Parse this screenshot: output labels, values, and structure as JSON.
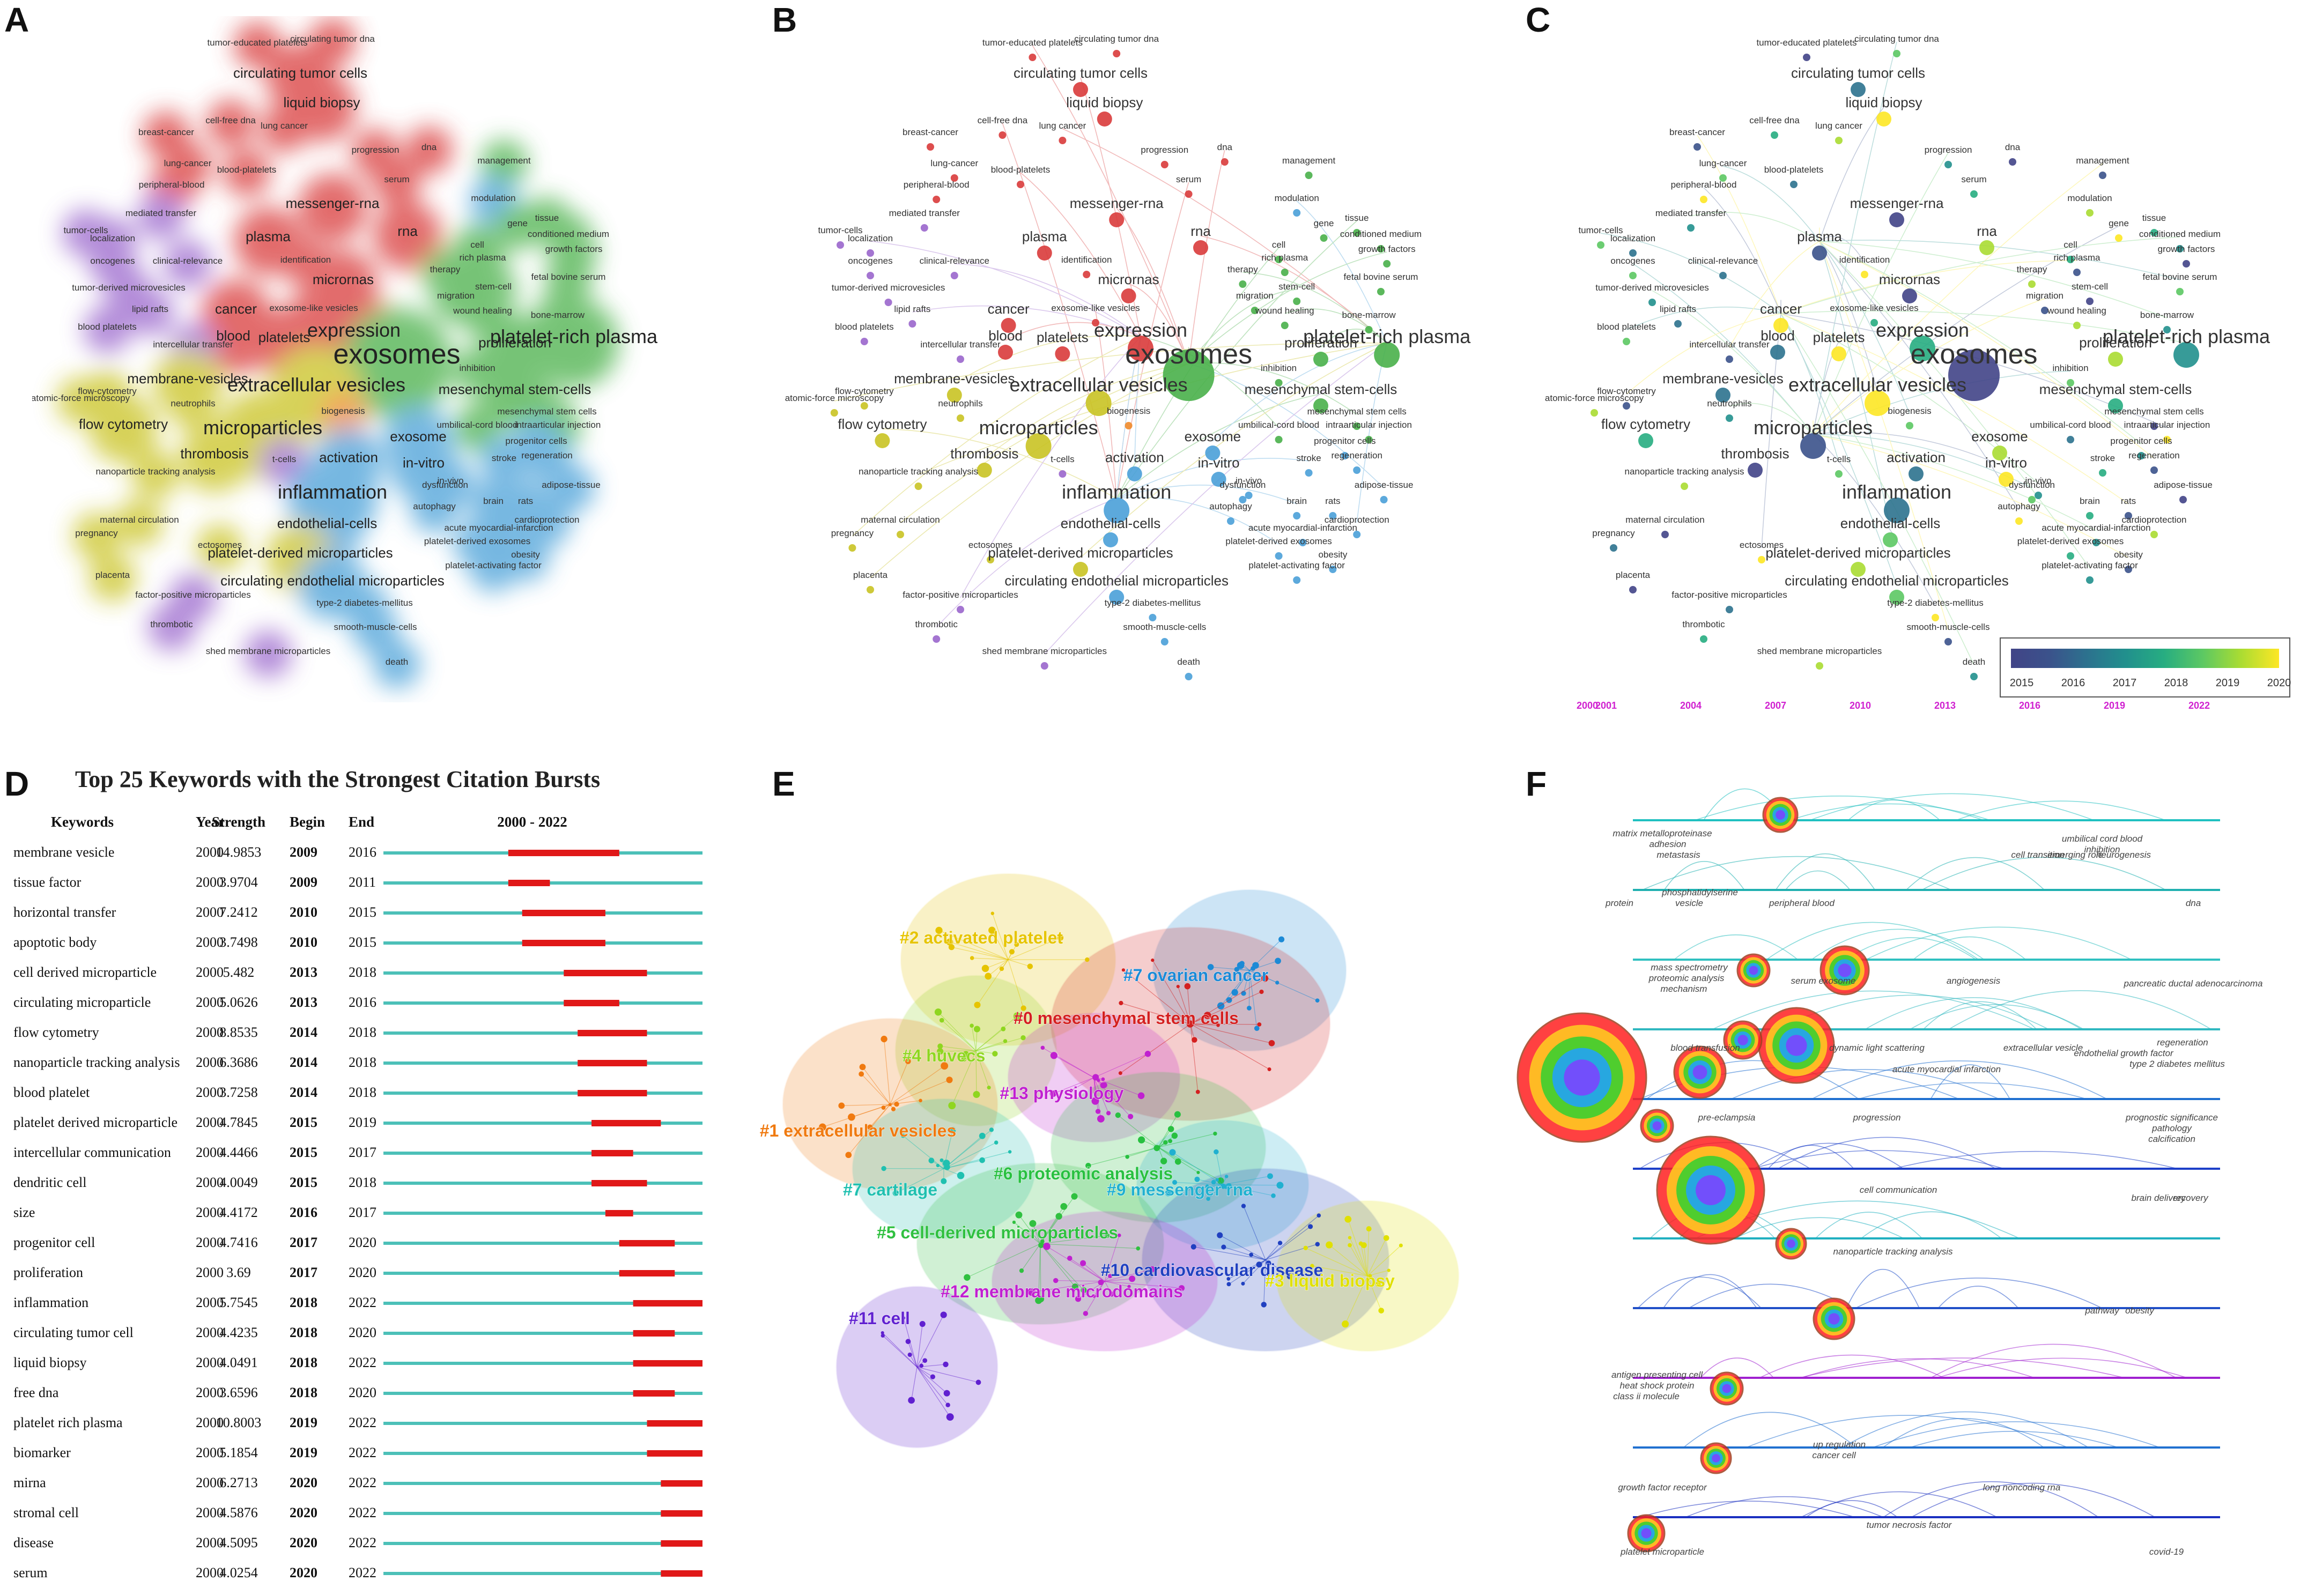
{
  "panel_labels": [
    "A",
    "B",
    "C",
    "D",
    "E",
    "F"
  ],
  "network_terms": [
    {
      "t": "tumor-educated platelets",
      "s": 1,
      "c": "red"
    },
    {
      "t": "circulating tumor dna",
      "s": 1,
      "c": "red"
    },
    {
      "t": "circulating tumor cells",
      "s": 2,
      "c": "red"
    },
    {
      "t": "liquid biopsy",
      "s": 2,
      "c": "red"
    },
    {
      "t": "cell-free dna",
      "s": 1,
      "c": "red"
    },
    {
      "t": "breast-cancer",
      "s": 1,
      "c": "red"
    },
    {
      "t": "lung cancer",
      "s": 1,
      "c": "red"
    },
    {
      "t": "progression",
      "s": 1,
      "c": "red"
    },
    {
      "t": "dna",
      "s": 1,
      "c": "red"
    },
    {
      "t": "lung-cancer",
      "s": 1,
      "c": "red"
    },
    {
      "t": "blood-platelets",
      "s": 1,
      "c": "red"
    },
    {
      "t": "peripheral-blood",
      "s": 1,
      "c": "red"
    },
    {
      "t": "serum",
      "s": 1,
      "c": "red"
    },
    {
      "t": "management",
      "s": 1,
      "c": "green"
    },
    {
      "t": "modulation",
      "s": 1,
      "c": "blue"
    },
    {
      "t": "mediated transfer",
      "s": 1,
      "c": "purple"
    },
    {
      "t": "messenger-rna",
      "s": 2,
      "c": "red"
    },
    {
      "t": "tumor-cells",
      "s": 1,
      "c": "purple"
    },
    {
      "t": "localization",
      "s": 1,
      "c": "purple"
    },
    {
      "t": "gene",
      "s": 1,
      "c": "green"
    },
    {
      "t": "tissue",
      "s": 1,
      "c": "green"
    },
    {
      "t": "plasma",
      "s": 2,
      "c": "red"
    },
    {
      "t": "rna",
      "s": 2,
      "c": "red"
    },
    {
      "t": "conditioned medium",
      "s": 1,
      "c": "green"
    },
    {
      "t": "growth factors",
      "s": 1,
      "c": "green"
    },
    {
      "t": "oncogenes",
      "s": 1,
      "c": "purple"
    },
    {
      "t": "clinical-relevance",
      "s": 1,
      "c": "purple"
    },
    {
      "t": "identification",
      "s": 1,
      "c": "red"
    },
    {
      "t": "cell",
      "s": 1,
      "c": "green"
    },
    {
      "t": "rich plasma",
      "s": 1,
      "c": "green"
    },
    {
      "t": "therapy",
      "s": 1,
      "c": "green"
    },
    {
      "t": "tumor-derived microvesicles",
      "s": 1,
      "c": "purple"
    },
    {
      "t": "micrornas",
      "s": 2,
      "c": "red"
    },
    {
      "t": "fetal bovine serum",
      "s": 1,
      "c": "green"
    },
    {
      "t": "lipid rafts",
      "s": 1,
      "c": "purple"
    },
    {
      "t": "cancer",
      "s": 2,
      "c": "red"
    },
    {
      "t": "exosome-like vesicles",
      "s": 1,
      "c": "red"
    },
    {
      "t": "migration",
      "s": 1,
      "c": "green"
    },
    {
      "t": "wound healing",
      "s": 1,
      "c": "green"
    },
    {
      "t": "bone-marrow",
      "s": 1,
      "c": "green"
    },
    {
      "t": "stem-cell",
      "s": 1,
      "c": "green"
    },
    {
      "t": "blood platelets",
      "s": 1,
      "c": "purple"
    },
    {
      "t": "blood",
      "s": 2,
      "c": "red"
    },
    {
      "t": "platelets",
      "s": 2,
      "c": "red"
    },
    {
      "t": "expression",
      "s": 3,
      "c": "red"
    },
    {
      "t": "intercellular transfer",
      "s": 1,
      "c": "purple"
    },
    {
      "t": "proliferation",
      "s": 2,
      "c": "green"
    },
    {
      "t": "platelet-rich plasma",
      "s": 3,
      "c": "green"
    },
    {
      "t": "exosomes",
      "s": 4,
      "c": "green"
    },
    {
      "t": "inhibition",
      "s": 1,
      "c": "green"
    },
    {
      "t": "membrane-vesicles",
      "s": 2,
      "c": "yellow"
    },
    {
      "t": "extracellular vesicles",
      "s": 3,
      "c": "yellow"
    },
    {
      "t": "mesenchymal stem-cells",
      "s": 2,
      "c": "green"
    },
    {
      "t": "flow-cytometry",
      "s": 1,
      "c": "yellow"
    },
    {
      "t": "atomic-force microscopy",
      "s": 1,
      "c": "yellow"
    },
    {
      "t": "neutrophils",
      "s": 1,
      "c": "yellow"
    },
    {
      "t": "mesenchymal stem cells",
      "s": 1,
      "c": "green"
    },
    {
      "t": "biogenesis",
      "s": 1,
      "c": "orange"
    },
    {
      "t": "umbilical-cord blood",
      "s": 1,
      "c": "green"
    },
    {
      "t": "intraarticular injection",
      "s": 1,
      "c": "green"
    },
    {
      "t": "flow cytometry",
      "s": 2,
      "c": "yellow"
    },
    {
      "t": "microparticles",
      "s": 3,
      "c": "yellow"
    },
    {
      "t": "exosome",
      "s": 2,
      "c": "blue"
    },
    {
      "t": "progenitor cells",
      "s": 1,
      "c": "blue"
    },
    {
      "t": "thrombosis",
      "s": 2,
      "c": "yellow"
    },
    {
      "t": "t-cells",
      "s": 1,
      "c": "purple"
    },
    {
      "t": "activation",
      "s": 2,
      "c": "blue"
    },
    {
      "t": "in-vitro",
      "s": 2,
      "c": "blue"
    },
    {
      "t": "stroke",
      "s": 1,
      "c": "blue"
    },
    {
      "t": "regeneration",
      "s": 1,
      "c": "blue"
    },
    {
      "t": "nanoparticle tracking analysis",
      "s": 1,
      "c": "yellow"
    },
    {
      "t": "in-vivo",
      "s": 1,
      "c": "blue"
    },
    {
      "t": "adipose-tissue",
      "s": 1,
      "c": "blue"
    },
    {
      "t": "dysfunction",
      "s": 1,
      "c": "blue"
    },
    {
      "t": "inflammation",
      "s": 3,
      "c": "blue"
    },
    {
      "t": "autophagy",
      "s": 1,
      "c": "blue"
    },
    {
      "t": "brain",
      "s": 1,
      "c": "blue"
    },
    {
      "t": "rats",
      "s": 1,
      "c": "blue"
    },
    {
      "t": "cardioprotection",
      "s": 1,
      "c": "blue"
    },
    {
      "t": "acute myocardial-infarction",
      "s": 1,
      "c": "blue"
    },
    {
      "t": "maternal circulation",
      "s": 1,
      "c": "yellow"
    },
    {
      "t": "endothelial-cells",
      "s": 2,
      "c": "blue"
    },
    {
      "t": "pregnancy",
      "s": 1,
      "c": "yellow"
    },
    {
      "t": "ectosomes",
      "s": 1,
      "c": "yellow"
    },
    {
      "t": "platelet-derived exosomes",
      "s": 1,
      "c": "blue"
    },
    {
      "t": "obesity",
      "s": 1,
      "c": "blue"
    },
    {
      "t": "platelet-derived microparticles",
      "s": 2,
      "c": "yellow"
    },
    {
      "t": "platelet-activating factor",
      "s": 1,
      "c": "blue"
    },
    {
      "t": "placenta",
      "s": 1,
      "c": "yellow"
    },
    {
      "t": "circulating endothelial microparticles",
      "s": 2,
      "c": "blue"
    },
    {
      "t": "factor-positive microparticles",
      "s": 1,
      "c": "purple"
    },
    {
      "t": "type-2 diabetes-mellitus",
      "s": 1,
      "c": "blue"
    },
    {
      "t": "thrombotic",
      "s": 1,
      "c": "purple"
    },
    {
      "t": "smooth-muscle-cells",
      "s": 1,
      "c": "blue"
    },
    {
      "t": "shed membrane microparticles",
      "s": 1,
      "c": "purple"
    },
    {
      "t": "death",
      "s": 1,
      "c": "blue"
    }
  ],
  "overlay_colorbar": {
    "ticks": [
      "2015",
      "2016",
      "2017",
      "2018",
      "2019",
      "2020"
    ]
  },
  "burst": {
    "title": "Top 25 Keywords with the Strongest Citation Bursts",
    "headers": {
      "keywords": "Keywords",
      "year": "Year",
      "strength": "Strength",
      "begin": "Begin",
      "end": "End",
      "range": "2000 - 2022"
    },
    "range": [
      2000,
      2022
    ]
  },
  "chart_data": {
    "type": "table",
    "title": "Top 25 Keywords with the Strongest Citation Bursts",
    "columns": [
      "Keywords",
      "Year",
      "Strength",
      "Begin",
      "End"
    ],
    "rows": [
      {
        "keyword": "membrane vesicle",
        "year": "2000",
        "strength": "14.9853",
        "begin": "2009",
        "end": "2016"
      },
      {
        "keyword": "tissue factor",
        "year": "2000",
        "strength": "3.9704",
        "begin": "2009",
        "end": "2011"
      },
      {
        "keyword": "horizontal transfer",
        "year": "2000",
        "strength": "7.2412",
        "begin": "2010",
        "end": "2015"
      },
      {
        "keyword": "apoptotic body",
        "year": "2000",
        "strength": "3.7498",
        "begin": "2010",
        "end": "2015"
      },
      {
        "keyword": "cell derived microparticle",
        "year": "2000",
        "strength": "5.482",
        "begin": "2013",
        "end": "2018"
      },
      {
        "keyword": "circulating microparticle",
        "year": "2000",
        "strength": "5.0626",
        "begin": "2013",
        "end": "2016"
      },
      {
        "keyword": "flow cytometry",
        "year": "2000",
        "strength": "8.8535",
        "begin": "2014",
        "end": "2018"
      },
      {
        "keyword": "nanoparticle tracking analysis",
        "year": "2000",
        "strength": "6.3686",
        "begin": "2014",
        "end": "2018"
      },
      {
        "keyword": "blood platelet",
        "year": "2000",
        "strength": "3.7258",
        "begin": "2014",
        "end": "2018"
      },
      {
        "keyword": "platelet derived microparticle",
        "year": "2000",
        "strength": "4.7845",
        "begin": "2015",
        "end": "2019"
      },
      {
        "keyword": "intercellular communication",
        "year": "2000",
        "strength": "4.4466",
        "begin": "2015",
        "end": "2017"
      },
      {
        "keyword": "dendritic cell",
        "year": "2000",
        "strength": "4.0049",
        "begin": "2015",
        "end": "2018"
      },
      {
        "keyword": "size",
        "year": "2000",
        "strength": "4.4172",
        "begin": "2016",
        "end": "2017"
      },
      {
        "keyword": "progenitor cell",
        "year": "2000",
        "strength": "4.7416",
        "begin": "2017",
        "end": "2020"
      },
      {
        "keyword": "proliferation",
        "year": "2000",
        "strength": "3.69",
        "begin": "2017",
        "end": "2020"
      },
      {
        "keyword": "inflammation",
        "year": "2000",
        "strength": "5.7545",
        "begin": "2018",
        "end": "2022"
      },
      {
        "keyword": "circulating tumor cell",
        "year": "2000",
        "strength": "4.4235",
        "begin": "2018",
        "end": "2020"
      },
      {
        "keyword": "liquid biopsy",
        "year": "2000",
        "strength": "4.0491",
        "begin": "2018",
        "end": "2022"
      },
      {
        "keyword": "free dna",
        "year": "2000",
        "strength": "3.6596",
        "begin": "2018",
        "end": "2020"
      },
      {
        "keyword": "platelet rich plasma",
        "year": "2000",
        "strength": "10.8003",
        "begin": "2019",
        "end": "2022"
      },
      {
        "keyword": "biomarker",
        "year": "2000",
        "strength": "5.1854",
        "begin": "2019",
        "end": "2022"
      },
      {
        "keyword": "mirna",
        "year": "2000",
        "strength": "6.2713",
        "begin": "2020",
        "end": "2022"
      },
      {
        "keyword": "stromal cell",
        "year": "2000",
        "strength": "4.5876",
        "begin": "2020",
        "end": "2022"
      },
      {
        "keyword": "disease",
        "year": "2000",
        "strength": "4.5095",
        "begin": "2020",
        "end": "2022"
      },
      {
        "keyword": "serum",
        "year": "2000",
        "strength": "4.0254",
        "begin": "2020",
        "end": "2022"
      }
    ]
  },
  "clusters": [
    {
      "label": "#2 activated platelet",
      "c": "#e6c400"
    },
    {
      "label": "#7 ovarian cancer",
      "c": "#1c8ad6"
    },
    {
      "label": "#0 mesenchymal stem cells",
      "c": "#d42020"
    },
    {
      "label": "#4 huvecs",
      "c": "#8fd620"
    },
    {
      "label": "#13 physiology",
      "c": "#c020d0"
    },
    {
      "label": "#1 extracellular vesicles",
      "c": "#f07a10"
    },
    {
      "label": "#6 proteomic analysis",
      "c": "#28c040"
    },
    {
      "label": "#7 cartilage",
      "c": "#20c0b0"
    },
    {
      "label": "#9 messenger rna",
      "c": "#20b0d0"
    },
    {
      "label": "#5 cell-derived microparticles",
      "c": "#30c040"
    },
    {
      "label": "#10 cardiovascular disease",
      "c": "#2040c0"
    },
    {
      "label": "#3 liquid biopsy",
      "c": "#e0e000"
    },
    {
      "label": "#12 membrane microdomains",
      "c": "#c020d0"
    },
    {
      "label": "#11 cell",
      "c": "#6020d0"
    }
  ],
  "timeline": {
    "years": [
      "2000",
      "2001",
      "2004",
      "2007",
      "2010",
      "2013",
      "2016",
      "2019",
      "2022"
    ],
    "terms": [
      "matrix metalloproteinase",
      "adhesion",
      "metastasis",
      "umbilical cord blood",
      "inhibition",
      "neurogenesis",
      "cell transition",
      "emerging role",
      "protein",
      "phosphatidylserine",
      "vesicle",
      "peripheral blood",
      "dna",
      "mass spectrometry",
      "proteomic analysis",
      "mechanism",
      "serum exosome",
      "angiogenesis",
      "pancreatic ductal adenocarcinoma",
      "blood transfusion",
      "dynamic light scattering",
      "extracellular vesicle",
      "regeneration",
      "endothelial growth factor",
      "type 2 diabetes mellitus",
      "acute myocardial infarction",
      "pre-eclampsia",
      "progression",
      "prognostic significance",
      "pathology",
      "calcification",
      "cell communication",
      "brain delivery",
      "recovery",
      "nanoparticle tracking analysis",
      "pathway",
      "obesity",
      "antigen presenting cell",
      "heat shock protein",
      "class ii molecule",
      "up regulation",
      "cancer cell",
      "growth factor receptor",
      "long noncoding rna",
      "platelet microparticle",
      "tumor necrosis factor",
      "covid-19"
    ]
  }
}
